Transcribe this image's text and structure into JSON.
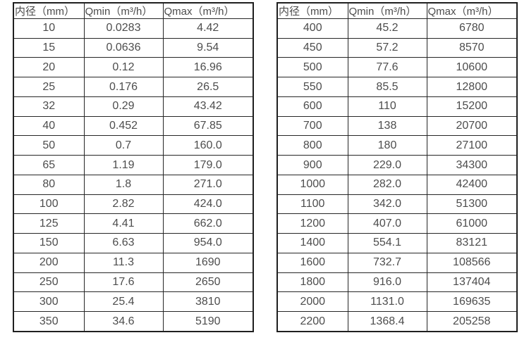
{
  "page": {
    "background": "#ffffff",
    "text_color": "#4d4d4d",
    "border_color": "#262626"
  },
  "tables": [
    {
      "headers": [
        "内径（mm）",
        "Qmin（m³/h）",
        "Qmax（m³/h）"
      ],
      "rows": [
        [
          "10",
          "0.0283",
          "4.42"
        ],
        [
          "15",
          "0.0636",
          "9.54"
        ],
        [
          "20",
          "0.12",
          "16.96"
        ],
        [
          "25",
          "0.176",
          "26.5"
        ],
        [
          "32",
          "0.29",
          "43.42"
        ],
        [
          "40",
          "0.452",
          "67.85"
        ],
        [
          "50",
          "0.7",
          "160.0"
        ],
        [
          "65",
          "1.19",
          "179.0"
        ],
        [
          "80",
          "1.8",
          "271.0"
        ],
        [
          "100",
          "2.82",
          "424.0"
        ],
        [
          "125",
          "4.41",
          "662.0"
        ],
        [
          "150",
          "6.63",
          "954.0"
        ],
        [
          "200",
          "11.3",
          "1690"
        ],
        [
          "250",
          "17.6",
          "2650"
        ],
        [
          "300",
          "25.4",
          "3810"
        ],
        [
          "350",
          "34.6",
          "5190"
        ]
      ]
    },
    {
      "headers": [
        "内径（mm）",
        "Qmin（m³/h）",
        "Qmax（m³/h）"
      ],
      "rows": [
        [
          "400",
          "45.2",
          "6780"
        ],
        [
          "450",
          "57.2",
          "8570"
        ],
        [
          "500",
          "77.6",
          "10600"
        ],
        [
          "550",
          "85.5",
          "12800"
        ],
        [
          "600",
          "110",
          "15200"
        ],
        [
          "700",
          "138",
          "20700"
        ],
        [
          "800",
          "180",
          "27100"
        ],
        [
          "900",
          "229.0",
          "34300"
        ],
        [
          "1000",
          "282.0",
          "42400"
        ],
        [
          "1100",
          "342.0",
          "51300"
        ],
        [
          "1200",
          "407.0",
          "61000"
        ],
        [
          "1400",
          "554.1",
          "83121"
        ],
        [
          "1600",
          "732.7",
          "108566"
        ],
        [
          "1800",
          "916.0",
          "137404"
        ],
        [
          "2000",
          "1131.0",
          "169635"
        ],
        [
          "2200",
          "1368.4",
          "205258"
        ]
      ]
    }
  ]
}
